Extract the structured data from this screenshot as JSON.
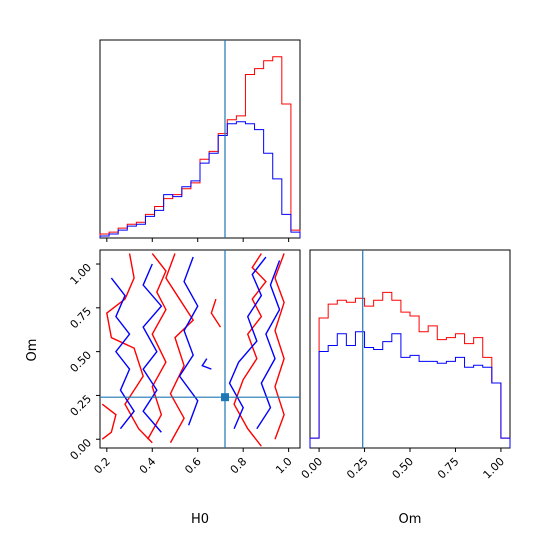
{
  "chart_data": {
    "type": "corner",
    "parameters": [
      "H0",
      "Om"
    ],
    "truths": {
      "H0": 0.72,
      "Om": 0.24
    },
    "series_colors": {
      "red": "#ff0000",
      "blue": "#0000ff",
      "truth": "#1f77b4"
    },
    "h0_histogram": {
      "xlim": [
        0.17,
        1.05
      ],
      "edges": [
        0.17,
        0.21,
        0.25,
        0.29,
        0.33,
        0.37,
        0.41,
        0.45,
        0.49,
        0.53,
        0.57,
        0.61,
        0.65,
        0.69,
        0.73,
        0.77,
        0.81,
        0.85,
        0.89,
        0.93,
        0.97,
        1.01,
        1.05
      ],
      "red": [
        0.02,
        0.03,
        0.05,
        0.07,
        0.08,
        0.12,
        0.16,
        0.2,
        0.22,
        0.25,
        0.28,
        0.4,
        0.44,
        0.53,
        0.6,
        0.62,
        0.83,
        0.86,
        0.9,
        0.92,
        0.68,
        0.04
      ],
      "blue": [
        0.01,
        0.02,
        0.04,
        0.06,
        0.07,
        0.11,
        0.14,
        0.22,
        0.21,
        0.26,
        0.29,
        0.38,
        0.43,
        0.52,
        0.58,
        0.59,
        0.58,
        0.55,
        0.43,
        0.3,
        0.12,
        0.03
      ]
    },
    "om_histogram": {
      "xlim": [
        -0.05,
        1.05
      ],
      "edges": [
        -0.05,
        0.0,
        0.05,
        0.1,
        0.15,
        0.2,
        0.25,
        0.3,
        0.35,
        0.4,
        0.45,
        0.5,
        0.55,
        0.6,
        0.65,
        0.7,
        0.75,
        0.8,
        0.85,
        0.9,
        0.95,
        1.0,
        1.05
      ],
      "red": [
        0.05,
        0.66,
        0.73,
        0.75,
        0.74,
        0.76,
        0.72,
        0.75,
        0.79,
        0.75,
        0.69,
        0.67,
        0.59,
        0.62,
        0.55,
        0.56,
        0.58,
        0.53,
        0.56,
        0.46,
        0.33,
        0.05
      ],
      "blue": [
        0.05,
        0.49,
        0.52,
        0.58,
        0.52,
        0.59,
        0.51,
        0.5,
        0.54,
        0.58,
        0.46,
        0.47,
        0.44,
        0.44,
        0.43,
        0.44,
        0.46,
        0.41,
        0.42,
        0.41,
        0.33,
        0.05
      ]
    },
    "joint": {
      "xlim": [
        0.17,
        1.05
      ],
      "ylim": [
        -0.05,
        1.08
      ],
      "xticks": [
        "0.2",
        "0.4",
        "0.6",
        "0.8",
        "1.0"
      ],
      "xtick_values": [
        0.2,
        0.4,
        0.6,
        0.8,
        1.0
      ],
      "yticks": [
        "0.00",
        "0.25",
        "0.50",
        "0.75",
        "1.00"
      ],
      "ytick_values": [
        0.0,
        0.25,
        0.5,
        0.75,
        1.0
      ],
      "om_xticks": [
        "0.00",
        "0.25",
        "0.50",
        "0.75",
        "1.00"
      ],
      "om_xtick_values": [
        0.0,
        0.25,
        0.5,
        0.75,
        1.0
      ],
      "xlabel": "H0",
      "ylabel": "Om",
      "om_xlabel": "Om",
      "red_contours": [
        [
          [
            0.3,
            1.06
          ],
          [
            0.32,
            0.92
          ],
          [
            0.28,
            0.8
          ],
          [
            0.2,
            0.72
          ],
          [
            0.22,
            0.58
          ],
          [
            0.32,
            0.52
          ],
          [
            0.36,
            0.36
          ],
          [
            0.28,
            0.2
          ],
          [
            0.34,
            0.06
          ],
          [
            0.4,
            -0.02
          ]
        ],
        [
          [
            0.4,
            1.06
          ],
          [
            0.46,
            0.96
          ],
          [
            0.42,
            0.84
          ],
          [
            0.46,
            0.74
          ],
          [
            0.4,
            0.6
          ],
          [
            0.46,
            0.44
          ],
          [
            0.4,
            0.3
          ],
          [
            0.44,
            0.14
          ],
          [
            0.38,
            0.0
          ]
        ],
        [
          [
            0.5,
            1.06
          ],
          [
            0.46,
            0.92
          ],
          [
            0.52,
            0.8
          ],
          [
            0.58,
            0.68
          ],
          [
            0.5,
            0.58
          ],
          [
            0.54,
            0.42
          ],
          [
            0.48,
            0.26
          ],
          [
            0.54,
            0.12
          ],
          [
            0.48,
            -0.02
          ]
        ],
        [
          [
            0.88,
            1.06
          ],
          [
            0.84,
            0.98
          ],
          [
            0.9,
            0.9
          ],
          [
            0.84,
            0.8
          ],
          [
            0.88,
            0.7
          ],
          [
            0.82,
            0.6
          ],
          [
            0.86,
            0.46
          ],
          [
            0.8,
            0.34
          ],
          [
            0.76,
            0.2
          ],
          [
            0.82,
            0.06
          ],
          [
            0.88,
            -0.04
          ]
        ],
        [
          [
            0.98,
            1.06
          ],
          [
            0.94,
            0.92
          ],
          [
            0.98,
            0.78
          ],
          [
            0.94,
            0.62
          ],
          [
            0.98,
            0.46
          ],
          [
            0.94,
            0.3
          ],
          [
            0.98,
            0.14
          ],
          [
            0.94,
            0.0
          ]
        ],
        [
          [
            0.18,
            0.2
          ],
          [
            0.24,
            0.14
          ],
          [
            0.22,
            0.04
          ],
          [
            0.18,
            0.0
          ]
        ],
        [
          [
            0.68,
            0.8
          ],
          [
            0.66,
            0.72
          ],
          [
            0.7,
            0.64
          ]
        ]
      ],
      "blue_contours": [
        [
          [
            0.22,
            0.92
          ],
          [
            0.28,
            0.82
          ],
          [
            0.24,
            0.7
          ],
          [
            0.3,
            0.6
          ],
          [
            0.24,
            0.5
          ],
          [
            0.3,
            0.4
          ],
          [
            0.26,
            0.28
          ],
          [
            0.32,
            0.16
          ],
          [
            0.26,
            0.06
          ]
        ],
        [
          [
            0.4,
            1.0
          ],
          [
            0.36,
            0.88
          ],
          [
            0.44,
            0.76
          ],
          [
            0.36,
            0.64
          ],
          [
            0.42,
            0.5
          ],
          [
            0.36,
            0.4
          ],
          [
            0.42,
            0.28
          ],
          [
            0.36,
            0.16
          ],
          [
            0.44,
            0.04
          ]
        ],
        [
          [
            0.58,
            1.04
          ],
          [
            0.54,
            0.9
          ],
          [
            0.6,
            0.76
          ],
          [
            0.54,
            0.62
          ],
          [
            0.58,
            0.48
          ],
          [
            0.52,
            0.36
          ],
          [
            0.6,
            0.22
          ],
          [
            0.56,
            0.08
          ]
        ],
        [
          [
            0.9,
            1.04
          ],
          [
            0.84,
            0.94
          ],
          [
            0.88,
            0.82
          ],
          [
            0.82,
            0.7
          ],
          [
            0.86,
            0.56
          ],
          [
            0.78,
            0.44
          ],
          [
            0.74,
            0.32
          ],
          [
            0.8,
            0.18
          ],
          [
            0.76,
            0.06
          ]
        ],
        [
          [
            0.96,
            1.02
          ],
          [
            0.92,
            0.88
          ],
          [
            0.96,
            0.74
          ],
          [
            0.9,
            0.6
          ],
          [
            0.94,
            0.46
          ],
          [
            0.88,
            0.32
          ],
          [
            0.92,
            0.18
          ],
          [
            0.86,
            0.06
          ]
        ],
        [
          [
            0.64,
            0.46
          ],
          [
            0.62,
            0.42
          ],
          [
            0.66,
            0.4
          ]
        ]
      ]
    }
  }
}
